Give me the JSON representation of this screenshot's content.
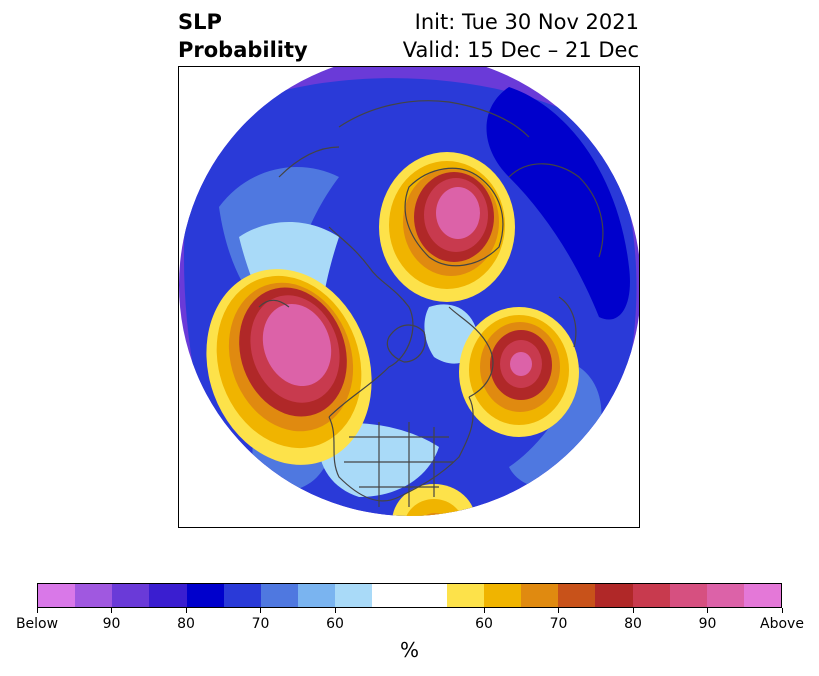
{
  "title": {
    "left_line1": "SLP",
    "left_line2": "Probability",
    "right_line1": "Init: Tue 30 Nov 2021",
    "right_line2": "Valid: 15 Dec – 21 Dec"
  },
  "colorbar": {
    "colors": [
      "#d978e8",
      "#a058e0",
      "#6a3ad8",
      "#3a1ed0",
      "#0000cc",
      "#2a3ad8",
      "#4f78e0",
      "#7ab4f0",
      "#a9daf8",
      "#ffffff",
      "#ffffff",
      "#fde24a",
      "#f0b400",
      "#e08a10",
      "#c8521a",
      "#b02828",
      "#c83a4e",
      "#d65080",
      "#dc62a8",
      "#e478d8"
    ],
    "tick_labels": [
      "Below",
      "90",
      "80",
      "70",
      "60",
      "60",
      "70",
      "80",
      "90",
      "Above"
    ],
    "unit": "%"
  },
  "map_colors": {
    "outer_low": "#6a3ad8",
    "low_mid": "#2a3ad8",
    "low_core": "#0000cc",
    "low_light": "#4f78e0",
    "low_pale": "#a9daf8",
    "high_yellow": "#fde24a",
    "high_gold": "#f0b400",
    "high_orange": "#e08a10",
    "high_red": "#b02828",
    "high_rose": "#c83a4e",
    "high_pink": "#dc62a8",
    "coast": "#444444"
  }
}
